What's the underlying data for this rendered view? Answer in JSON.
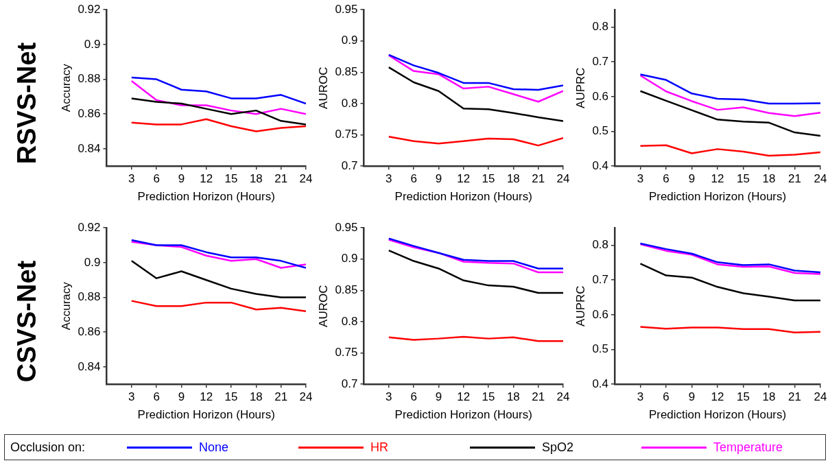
{
  "chart_data": [
    {
      "type": "line",
      "annotations": [
        "RSVS-Net"
      ],
      "xlabel": "Prediction Horizon (Hours)",
      "ylabel": "Accuracy",
      "x": [
        3,
        6,
        9,
        12,
        15,
        18,
        21,
        24
      ],
      "xlim": [
        0,
        24
      ],
      "xticks": [
        3,
        6,
        9,
        12,
        15,
        18,
        21,
        24
      ],
      "ylim": [
        0.83,
        0.92
      ],
      "yticks": [
        0.84,
        0.86,
        0.88,
        0.9,
        0.92
      ],
      "grid": false,
      "line_style": "solid",
      "marker": "none",
      "legend": "bottom",
      "legend_title": "Occlusion on:",
      "series": [
        {
          "name": "None",
          "color": "#0000ff",
          "values": [
            0.881,
            0.88,
            0.874,
            0.873,
            0.869,
            0.869,
            0.871,
            0.866
          ]
        },
        {
          "name": "HR",
          "color": "#ff0000",
          "values": [
            0.855,
            0.854,
            0.854,
            0.857,
            0.853,
            0.85,
            0.852,
            0.853
          ]
        },
        {
          "name": "SpO2",
          "color": "#000000",
          "values": [
            0.869,
            0.867,
            0.866,
            0.863,
            0.86,
            0.862,
            0.856,
            0.854
          ]
        },
        {
          "name": "Temperature",
          "color": "#ff00ff",
          "values": [
            0.879,
            0.868,
            0.865,
            0.865,
            0.862,
            0.86,
            0.863,
            0.86
          ]
        }
      ]
    },
    {
      "type": "line",
      "xlabel": "Prediction Horizon (Hours)",
      "ylabel": "AUROC",
      "x": [
        3,
        6,
        9,
        12,
        15,
        18,
        21,
        24
      ],
      "xlim": [
        0,
        24
      ],
      "xticks": [
        3,
        6,
        9,
        12,
        15,
        18,
        21,
        24
      ],
      "ylim": [
        0.7,
        0.95
      ],
      "yticks": [
        0.7,
        0.75,
        0.8,
        0.85,
        0.9,
        0.95
      ],
      "grid": false,
      "line_style": "solid",
      "marker": "none",
      "series": [
        {
          "color": "#0000ff",
          "values": [
            0.878,
            0.861,
            0.849,
            0.833,
            0.833,
            0.823,
            0.822,
            0.829
          ]
        },
        {
          "color": "#ff0000",
          "values": [
            0.747,
            0.74,
            0.736,
            0.74,
            0.744,
            0.743,
            0.733,
            0.745
          ]
        },
        {
          "color": "#000000",
          "values": [
            0.858,
            0.834,
            0.82,
            0.792,
            0.791,
            0.785,
            0.778,
            0.772
          ]
        },
        {
          "color": "#ff00ff",
          "values": [
            0.877,
            0.852,
            0.847,
            0.824,
            0.827,
            0.815,
            0.803,
            0.82
          ]
        }
      ]
    },
    {
      "type": "line",
      "xlabel": "Prediction Horizon (Hours)",
      "ylabel": "AUPRC",
      "x": [
        3,
        6,
        9,
        12,
        15,
        18,
        21,
        24
      ],
      "xlim": [
        0,
        24
      ],
      "xticks": [
        3,
        6,
        9,
        12,
        15,
        18,
        21,
        24
      ],
      "ylim": [
        0.4,
        0.85
      ],
      "yticks": [
        0.4,
        0.5,
        0.6,
        0.7,
        0.8
      ],
      "grid": false,
      "line_style": "solid",
      "marker": "none",
      "series": [
        {
          "color": "#0000ff",
          "values": [
            0.664,
            0.648,
            0.609,
            0.594,
            0.592,
            0.58,
            0.58,
            0.581
          ]
        },
        {
          "color": "#ff0000",
          "values": [
            0.458,
            0.46,
            0.437,
            0.449,
            0.442,
            0.43,
            0.433,
            0.44
          ]
        },
        {
          "color": "#000000",
          "values": [
            0.616,
            0.588,
            0.561,
            0.534,
            0.528,
            0.525,
            0.497,
            0.487
          ]
        },
        {
          "color": "#ff00ff",
          "values": [
            0.661,
            0.615,
            0.587,
            0.562,
            0.569,
            0.553,
            0.544,
            0.554
          ]
        }
      ]
    },
    {
      "type": "line",
      "annotations": [
        "CSVS-Net"
      ],
      "xlabel": "Prediction Horizon (Hours)",
      "ylabel": "Accuracy",
      "x": [
        3,
        6,
        9,
        12,
        15,
        18,
        21,
        24
      ],
      "xlim": [
        0,
        24
      ],
      "xticks": [
        3,
        6,
        9,
        12,
        15,
        18,
        21,
        24
      ],
      "ylim": [
        0.83,
        0.92
      ],
      "yticks": [
        0.84,
        0.86,
        0.88,
        0.9,
        0.92
      ],
      "grid": false,
      "line_style": "solid",
      "marker": "none",
      "series": [
        {
          "color": "#0000ff",
          "values": [
            0.913,
            0.91,
            0.91,
            0.906,
            0.903,
            0.903,
            0.901,
            0.897
          ]
        },
        {
          "color": "#ff0000",
          "values": [
            0.878,
            0.875,
            0.875,
            0.877,
            0.877,
            0.873,
            0.874,
            0.872
          ]
        },
        {
          "color": "#000000",
          "values": [
            0.901,
            0.891,
            0.895,
            0.89,
            0.885,
            0.882,
            0.88,
            0.88
          ]
        },
        {
          "color": "#ff00ff",
          "values": [
            0.912,
            0.91,
            0.909,
            0.904,
            0.901,
            0.902,
            0.897,
            0.899
          ]
        }
      ]
    },
    {
      "type": "line",
      "xlabel": "Prediction Horizon (Hours)",
      "ylabel": "AUROC",
      "x": [
        3,
        6,
        9,
        12,
        15,
        18,
        21,
        24
      ],
      "xlim": [
        0,
        24
      ],
      "xticks": [
        3,
        6,
        9,
        12,
        15,
        18,
        21,
        24
      ],
      "ylim": [
        0.7,
        0.95
      ],
      "yticks": [
        0.7,
        0.75,
        0.8,
        0.85,
        0.9,
        0.95
      ],
      "grid": false,
      "line_style": "solid",
      "marker": "none",
      "series": [
        {
          "color": "#0000ff",
          "values": [
            0.933,
            0.921,
            0.91,
            0.899,
            0.897,
            0.897,
            0.885,
            0.885
          ]
        },
        {
          "color": "#ff0000",
          "values": [
            0.775,
            0.771,
            0.773,
            0.776,
            0.773,
            0.775,
            0.769,
            0.769
          ]
        },
        {
          "color": "#000000",
          "values": [
            0.914,
            0.897,
            0.885,
            0.866,
            0.858,
            0.856,
            0.846,
            0.846
          ]
        },
        {
          "color": "#ff00ff",
          "values": [
            0.931,
            0.919,
            0.91,
            0.896,
            0.894,
            0.893,
            0.879,
            0.879
          ]
        }
      ]
    },
    {
      "type": "line",
      "xlabel": "Prediction Horizon (Hours)",
      "ylabel": "AUPRC",
      "x": [
        3,
        6,
        9,
        12,
        15,
        18,
        21,
        24
      ],
      "xlim": [
        0,
        24
      ],
      "xticks": [
        3,
        6,
        9,
        12,
        15,
        18,
        21,
        24
      ],
      "ylim": [
        0.4,
        0.85
      ],
      "yticks": [
        0.4,
        0.5,
        0.6,
        0.7,
        0.8
      ],
      "grid": false,
      "line_style": "solid",
      "marker": "none",
      "series": [
        {
          "color": "#0000ff",
          "values": [
            0.805,
            0.789,
            0.776,
            0.751,
            0.743,
            0.745,
            0.727,
            0.722
          ]
        },
        {
          "color": "#ff0000",
          "values": [
            0.565,
            0.56,
            0.563,
            0.563,
            0.559,
            0.559,
            0.549,
            0.551
          ]
        },
        {
          "color": "#000000",
          "values": [
            0.747,
            0.713,
            0.707,
            0.68,
            0.662,
            0.652,
            0.641,
            0.641
          ]
        },
        {
          "color": "#ff00ff",
          "values": [
            0.803,
            0.784,
            0.773,
            0.745,
            0.738,
            0.739,
            0.72,
            0.717
          ]
        }
      ]
    }
  ]
}
